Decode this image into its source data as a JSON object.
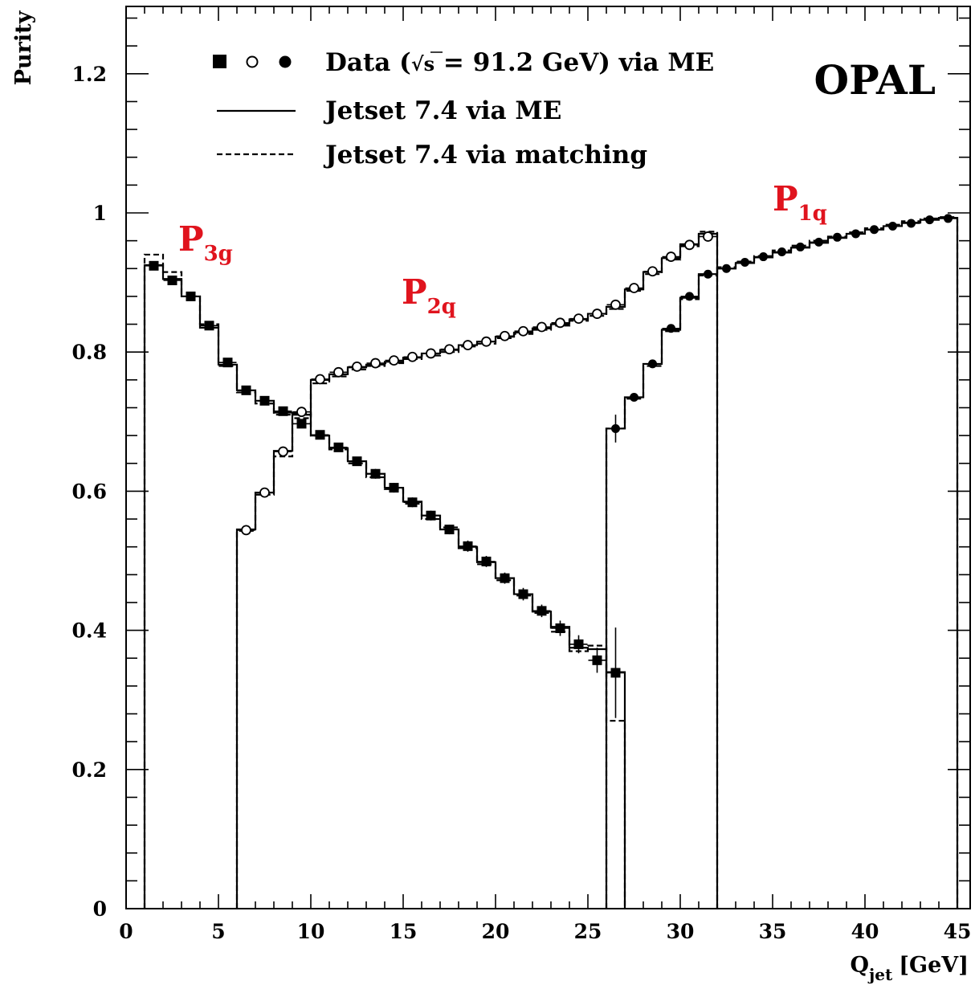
{
  "chart_data": {
    "type": "scatter",
    "experiment": "OPAL",
    "xlabel": "Q",
    "xlabel_sub": "jet",
    "xlabel_unit": "[GeV]",
    "ylabel": "Purity",
    "xlim": [
      0,
      46.5
    ],
    "ylim": [
      0,
      1.32
    ],
    "x_ticks": [
      0,
      5,
      10,
      15,
      20,
      25,
      30,
      35,
      40,
      45
    ],
    "y_ticks": [
      0,
      0.2,
      0.4,
      0.6,
      0.8,
      1,
      1.2
    ],
    "x_tick_labels": [
      "0",
      "5",
      "10",
      "15",
      "20",
      "25",
      "30",
      "35",
      "40",
      "45"
    ],
    "y_tick_labels": [
      "0",
      "0.2",
      "0.4",
      "0.6",
      "0.8",
      "1",
      "1.2"
    ],
    "legend": {
      "position": "top",
      "entries": [
        {
          "marker": "data-markers",
          "pre": "Data (",
          "sqrt": "s",
          "post": " = 91.2 GeV) via ME"
        },
        {
          "marker": "solid-line",
          "text": "Jetset 7.4 via ME"
        },
        {
          "marker": "dashed-line",
          "text": "Jetset 7.4 via matching"
        }
      ]
    },
    "annotations": [
      {
        "main": "P",
        "sub": "3g",
        "color": "#e0141e"
      },
      {
        "main": "P",
        "sub": "2q",
        "color": "#e0141e"
      },
      {
        "main": "P",
        "sub": "1q",
        "color": "#e0141e"
      }
    ],
    "series": [
      {
        "marker": "filled-square",
        "x": [
          1.5,
          2.5,
          3.5,
          4.5,
          5.5,
          6.5,
          7.5,
          8.5,
          9.5,
          10.5,
          11.5,
          12.5,
          13.5,
          14.5,
          15.5,
          16.5,
          17.5,
          18.5,
          19.5,
          20.5,
          21.5,
          22.5,
          23.5,
          24.5,
          25.5,
          26.5
        ],
        "y": [
          0.924,
          0.903,
          0.88,
          0.838,
          0.785,
          0.745,
          0.73,
          0.715,
          0.697,
          0.681,
          0.663,
          0.643,
          0.625,
          0.605,
          0.584,
          0.565,
          0.545,
          0.521,
          0.499,
          0.475,
          0.452,
          0.428,
          0.403,
          0.38,
          0.357,
          0.339
        ],
        "err": [
          0.004,
          0.004,
          0.004,
          0.004,
          0.005,
          0.005,
          0.005,
          0.006,
          0.006,
          0.006,
          0.006,
          0.006,
          0.007,
          0.007,
          0.007,
          0.007,
          0.007,
          0.008,
          0.008,
          0.008,
          0.009,
          0.009,
          0.011,
          0.013,
          0.018,
          0.065
        ],
        "me": [
          0.925,
          0.905,
          0.88,
          0.835,
          0.782,
          0.745,
          0.73,
          0.713,
          0.71,
          0.68,
          0.662,
          0.643,
          0.625,
          0.605,
          0.585,
          0.565,
          0.545,
          0.52,
          0.498,
          0.475,
          0.452,
          0.427,
          0.405,
          0.375,
          0.373,
          0.34
        ],
        "match": [
          0.94,
          0.915,
          0.88,
          0.84,
          0.78,
          0.742,
          0.726,
          0.71,
          0.712,
          0.68,
          0.66,
          0.64,
          0.62,
          0.603,
          0.582,
          0.56,
          0.548,
          0.518,
          0.495,
          0.472,
          0.45,
          0.425,
          0.398,
          0.37,
          0.378,
          0.27
        ]
      },
      {
        "marker": "open-circle",
        "x": [
          6.5,
          7.5,
          8.5,
          9.5,
          10.5,
          11.5,
          12.5,
          13.5,
          14.5,
          15.5,
          16.5,
          17.5,
          18.5,
          19.5,
          20.5,
          21.5,
          22.5,
          23.5,
          24.5,
          25.5,
          26.5,
          27.5,
          28.5,
          29.5,
          30.5,
          31.5
        ],
        "y": [
          0.544,
          0.598,
          0.657,
          0.714,
          0.761,
          0.771,
          0.779,
          0.784,
          0.788,
          0.793,
          0.798,
          0.804,
          0.81,
          0.815,
          0.823,
          0.83,
          0.836,
          0.842,
          0.848,
          0.855,
          0.868,
          0.892,
          0.916,
          0.937,
          0.954,
          0.966
        ],
        "err": [
          0.005,
          0.005,
          0.005,
          0.005,
          0.004,
          0.004,
          0.004,
          0.004,
          0.004,
          0.004,
          0.004,
          0.004,
          0.004,
          0.004,
          0.004,
          0.004,
          0.004,
          0.004,
          0.004,
          0.004,
          0.004,
          0.004,
          0.004,
          0.004,
          0.004,
          0.004
        ],
        "me": [
          0.545,
          0.598,
          0.658,
          0.71,
          0.76,
          0.768,
          0.778,
          0.782,
          0.786,
          0.792,
          0.798,
          0.803,
          0.81,
          0.815,
          0.822,
          0.828,
          0.834,
          0.84,
          0.847,
          0.855,
          0.865,
          0.89,
          0.915,
          0.935,
          0.955,
          0.97
        ],
        "match": [
          0.543,
          0.595,
          0.65,
          0.705,
          0.755,
          0.765,
          0.775,
          0.78,
          0.784,
          0.79,
          0.795,
          0.8,
          0.808,
          0.812,
          0.82,
          0.826,
          0.832,
          0.838,
          0.845,
          0.852,
          0.862,
          0.888,
          0.912,
          0.933,
          0.952,
          0.973
        ]
      },
      {
        "marker": "filled-circle",
        "x": [
          26.5,
          27.5,
          28.5,
          29.5,
          30.5,
          31.5,
          32.5,
          33.5,
          34.5,
          35.5,
          36.5,
          37.5,
          38.5,
          39.5,
          40.5,
          41.5,
          42.5,
          43.5,
          44.5
        ],
        "y": [
          0.69,
          0.735,
          0.783,
          0.834,
          0.88,
          0.912,
          0.92,
          0.929,
          0.937,
          0.944,
          0.951,
          0.958,
          0.965,
          0.97,
          0.976,
          0.981,
          0.985,
          0.99,
          0.992
        ],
        "err": [
          0.02,
          0.006,
          0.005,
          0.004,
          0.004,
          0.003,
          0.003,
          0.003,
          0.003,
          0.003,
          0.003,
          0.003,
          0.003,
          0.003,
          0.003,
          0.003,
          0.003,
          0.003,
          0.003
        ],
        "me": [
          0.69,
          0.735,
          0.783,
          0.832,
          0.878,
          0.912,
          0.92,
          0.928,
          0.936,
          0.943,
          0.95,
          0.957,
          0.964,
          0.97,
          0.976,
          0.981,
          0.986,
          0.99,
          0.993
        ],
        "match": [
          0.69,
          0.733,
          0.78,
          0.83,
          0.876,
          0.91,
          0.922,
          0.93,
          0.938,
          0.946,
          0.953,
          0.96,
          0.966,
          0.972,
          0.978,
          0.983,
          0.988,
          0.992,
          0.994
        ]
      }
    ]
  }
}
